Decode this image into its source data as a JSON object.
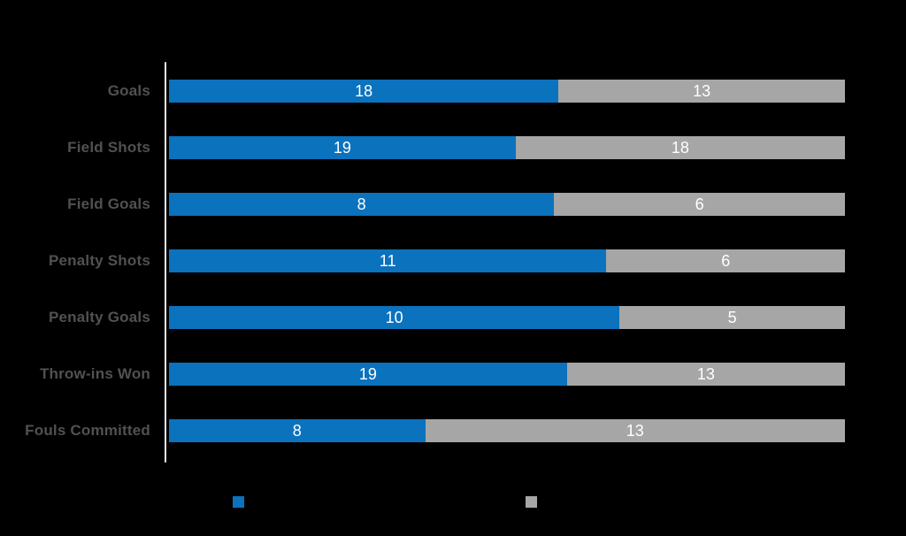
{
  "page": {
    "background_color": "#000000"
  },
  "colors": {
    "series1": "#0b72be",
    "series2": "#a6a6a6",
    "category_label": "#515151",
    "value_label": "#ffffff",
    "axis_line": "#ededed"
  },
  "chart_data": {
    "type": "bar",
    "subtype": "horizontal-stacked-100pct",
    "title": "",
    "xlabel": "",
    "ylabel": "",
    "grid": false,
    "legend_position": "bottom",
    "categories": [
      "Goals",
      "Field Shots",
      "Field Goals",
      "Penalty Shots",
      "Penalty Goals",
      "Throw-ins Won",
      "Fouls Committed"
    ],
    "series": [
      {
        "name": "",
        "color": "#0b72be",
        "values": [
          18,
          19,
          8,
          11,
          10,
          19,
          8
        ]
      },
      {
        "name": "",
        "color": "#a6a6a6",
        "values": [
          13,
          18,
          6,
          6,
          5,
          13,
          13
        ]
      }
    ]
  },
  "legend": {
    "items": [
      {
        "label": "",
        "color": "#0b72be"
      },
      {
        "label": "",
        "color": "#a6a6a6"
      }
    ]
  }
}
